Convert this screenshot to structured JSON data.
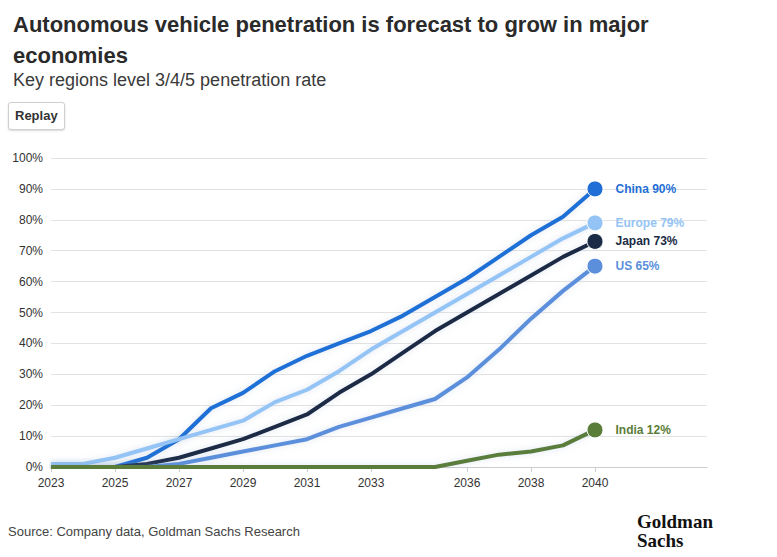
{
  "chart_data": {
    "type": "line",
    "title": "Autonomous vehicle penetration is forecast to grow in major economies",
    "subtitle": "Key regions level 3/4/5 penetration rate",
    "button": "Replay",
    "source": "Source: Company data, Goldman Sachs Research",
    "logo": "Goldman Sachs",
    "x": [
      2023,
      2024,
      2025,
      2026,
      2027,
      2028,
      2029,
      2030,
      2031,
      2032,
      2033,
      2034,
      2035,
      2036,
      2037,
      2038,
      2039,
      2040
    ],
    "xlim": [
      2023,
      2043.5
    ],
    "xticks": [
      2023,
      2025,
      2027,
      2029,
      2031,
      2033,
      2036,
      2038,
      2040
    ],
    "ylim": [
      0,
      100
    ],
    "yticks": [
      {
        "value": 0,
        "label": "0%"
      },
      {
        "value": 10,
        "label": "10%"
      },
      {
        "value": 20,
        "label": "20%"
      },
      {
        "value": 30,
        "label": "30%"
      },
      {
        "value": 40,
        "label": "40%"
      },
      {
        "value": 50,
        "label": "50%"
      },
      {
        "value": 60,
        "label": "60%"
      },
      {
        "value": 70,
        "label": "70%"
      },
      {
        "value": 80,
        "label": "80%"
      },
      {
        "value": 90,
        "label": "90%"
      },
      {
        "value": 100,
        "label": "100%"
      }
    ],
    "grid": true,
    "series": [
      {
        "name": "China",
        "color": "#1f6fd6",
        "values": [
          0,
          0,
          0,
          3,
          9,
          19,
          24,
          31,
          36,
          40,
          44,
          49,
          55,
          61,
          68,
          75,
          81,
          90
        ],
        "value_labels": [
          null,
          null,
          null,
          null,
          null,
          null,
          null,
          null,
          null,
          null,
          null,
          null,
          null,
          null,
          null,
          null,
          null,
          "China 90%"
        ]
      },
      {
        "name": "Europe",
        "color": "#94c4f5",
        "values": [
          1,
          1,
          3,
          6,
          9,
          12,
          15,
          21,
          25,
          31,
          38,
          44,
          50,
          56,
          62,
          68,
          74,
          79
        ],
        "value_labels": [
          null,
          null,
          null,
          null,
          null,
          null,
          null,
          null,
          null,
          null,
          null,
          null,
          null,
          null,
          null,
          null,
          null,
          "Europe 79%"
        ]
      },
      {
        "name": "Japan",
        "color": "#1a2b45",
        "values": [
          0,
          0,
          0,
          1,
          3,
          6,
          9,
          13,
          17,
          24,
          30,
          37,
          44,
          50,
          56,
          62,
          68,
          73
        ],
        "value_labels": [
          null,
          null,
          null,
          null,
          null,
          null,
          null,
          null,
          null,
          null,
          null,
          null,
          null,
          null,
          null,
          null,
          null,
          "Japan 73%"
        ]
      },
      {
        "name": "US",
        "color": "#5b8fdb",
        "values": [
          0,
          0,
          0,
          0,
          1,
          3,
          5,
          7,
          9,
          13,
          16,
          19,
          22,
          29,
          38,
          48,
          57,
          65
        ],
        "value_labels": [
          null,
          null,
          null,
          null,
          null,
          null,
          null,
          null,
          null,
          null,
          null,
          null,
          null,
          null,
          null,
          null,
          null,
          "US 65%"
        ]
      },
      {
        "name": "India",
        "color": "#5a7d3a",
        "values": [
          0,
          0,
          0,
          0,
          0,
          0,
          0,
          0,
          0,
          0,
          0,
          0,
          0,
          2,
          4,
          5,
          7,
          12
        ],
        "value_labels": [
          null,
          null,
          null,
          null,
          null,
          null,
          null,
          null,
          null,
          null,
          null,
          null,
          null,
          null,
          null,
          null,
          null,
          "India 12%"
        ]
      }
    ]
  }
}
